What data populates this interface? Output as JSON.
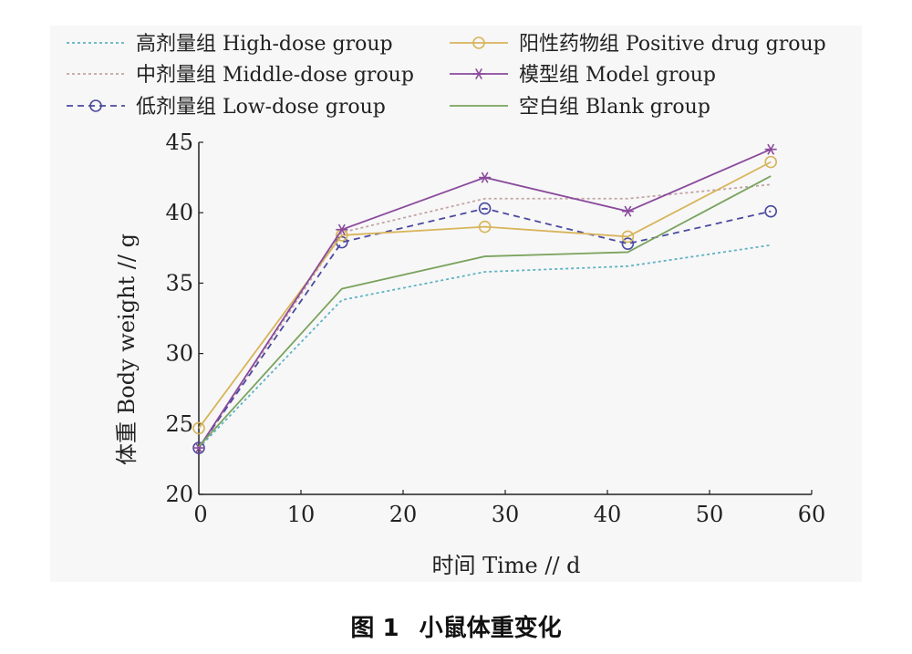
{
  "chart_data": {
    "type": "line",
    "xlabel": "时间 Time // d",
    "ylabel": "体重 Body weight // g",
    "xlim": [
      0,
      60
    ],
    "ylim": [
      20,
      45
    ],
    "xticks": [
      0,
      10,
      20,
      30,
      40,
      50,
      60
    ],
    "yticks": [
      20,
      25,
      30,
      35,
      40,
      45
    ],
    "grid": false,
    "legend_position": "top",
    "x": [
      0,
      14,
      28,
      42,
      56
    ],
    "series": [
      {
        "name": "高剂量组 High-dose group",
        "values": [
          23.3,
          33.8,
          35.8,
          36.2,
          37.7
        ],
        "color": "#5fb3c4",
        "dash": "dotted",
        "marker": "none"
      },
      {
        "name": "中剂量组 Middle-dose group",
        "values": [
          23.2,
          38.6,
          41.0,
          41.0,
          42.0
        ],
        "color": "#c4a4a4",
        "dash": "dotted",
        "marker": "none"
      },
      {
        "name": "低剂量组 Low-dose group",
        "values": [
          23.3,
          37.9,
          40.3,
          37.8,
          40.1
        ],
        "color": "#4a4aa0",
        "dash": "dashed",
        "marker": "circle"
      },
      {
        "name": "阳性药物组 Positive drug group",
        "values": [
          24.7,
          38.4,
          39.0,
          38.3,
          43.6
        ],
        "color": "#d8b45a",
        "dash": "solid",
        "marker": "circle"
      },
      {
        "name": "模型组 Model group",
        "values": [
          23.3,
          38.8,
          42.5,
          40.1,
          44.5
        ],
        "color": "#8a4a9c",
        "dash": "solid",
        "marker": "star"
      },
      {
        "name": "空白组 Blank group",
        "values": [
          23.4,
          34.6,
          36.9,
          37.2,
          42.6
        ],
        "color": "#7aa35e",
        "dash": "solid",
        "marker": "none"
      }
    ]
  },
  "caption": {
    "number": "图 1",
    "title": "小鼠体重变化"
  }
}
